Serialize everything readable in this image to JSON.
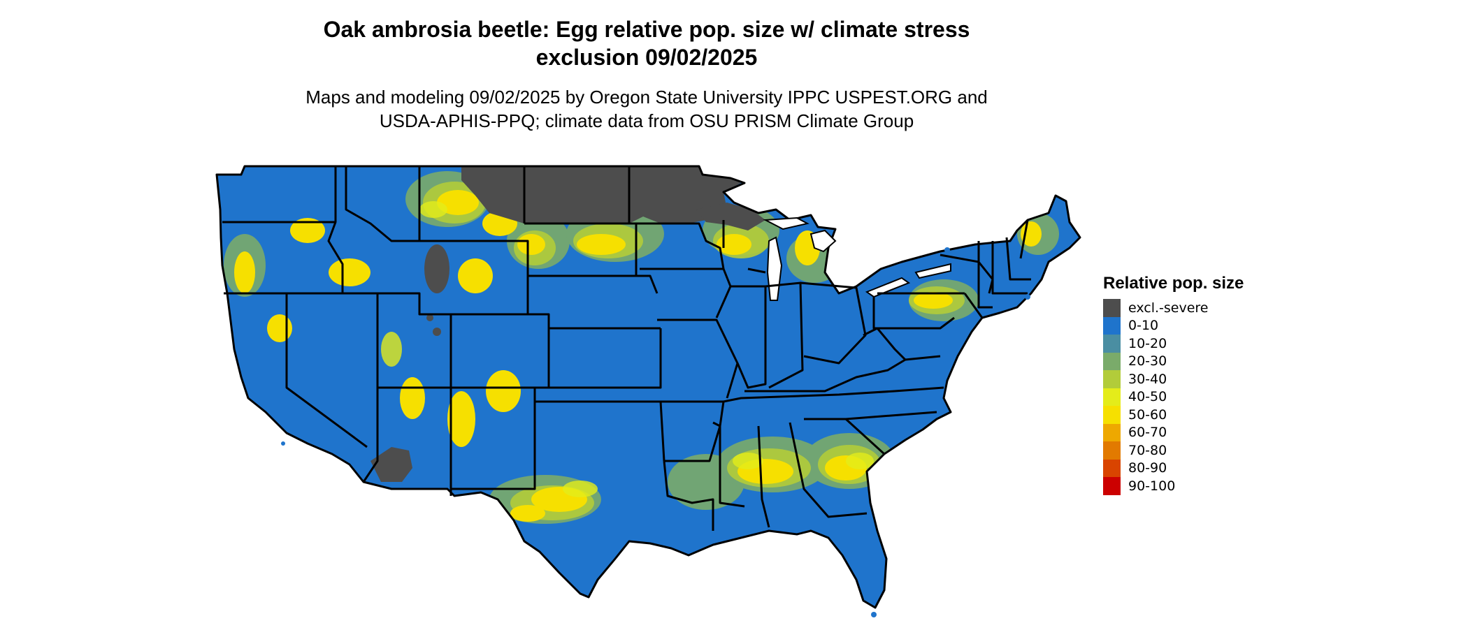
{
  "title": {
    "line1": "Oak ambrosia beetle: Egg relative pop. size w/ climate stress",
    "line2": "exclusion 09/02/2025"
  },
  "subtitle": {
    "line1": "Maps and modeling 09/02/2025 by Oregon State University IPPC USPEST.ORG and",
    "line2": "USDA-APHIS-PPQ; climate data from OSU PRISM Climate Group"
  },
  "legend": {
    "title": "Relative pop. size",
    "items": [
      {
        "label": "excl.-severe",
        "color": "#4d4d4d"
      },
      {
        "label": "0-10",
        "color": "#1f74cc"
      },
      {
        "label": "10-20",
        "color": "#4a8ea2"
      },
      {
        "label": "20-30",
        "color": "#7aab6a"
      },
      {
        "label": "30-40",
        "color": "#b2cc3a"
      },
      {
        "label": "40-50",
        "color": "#e4ec1a"
      },
      {
        "label": "50-60",
        "color": "#f6e000"
      },
      {
        "label": "60-70",
        "color": "#eea800"
      },
      {
        "label": "70-80",
        "color": "#e27a00"
      },
      {
        "label": "80-90",
        "color": "#d94400"
      },
      {
        "label": "90-100",
        "color": "#cc0000"
      }
    ]
  },
  "map": {
    "region": "Contiguous United States",
    "base_color": "#1f74cc",
    "boundary_color": "#000000"
  }
}
